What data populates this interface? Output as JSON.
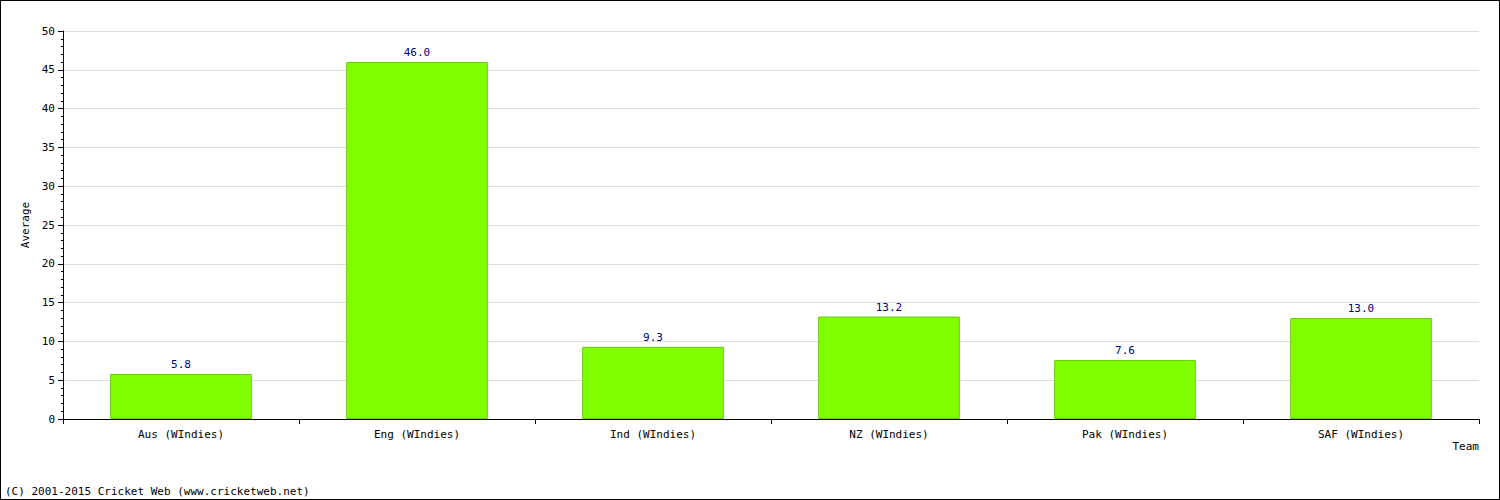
{
  "chart_data": {
    "type": "bar",
    "categories": [
      "Aus (WIndies)",
      "Eng (WIndies)",
      "Ind (WIndies)",
      "NZ (WIndies)",
      "Pak (WIndies)",
      "SAF (WIndies)"
    ],
    "values": [
      5.8,
      46.0,
      9.3,
      13.2,
      7.6,
      13.0
    ],
    "value_labels": [
      "5.8",
      "46.0",
      "9.3",
      "13.2",
      "7.6",
      "13.0"
    ],
    "color": "#80ff00",
    "x_label": "Team",
    "y_label": "Average",
    "ylim": [
      0,
      50
    ],
    "yticks": [
      0,
      5,
      10,
      15,
      20,
      25,
      30,
      35,
      40,
      45,
      50
    ],
    "grid": true,
    "data_labels": true,
    "annotations": [
      "(C) 2001-2015 Cricket Web (www.cricketweb.net)"
    ]
  }
}
